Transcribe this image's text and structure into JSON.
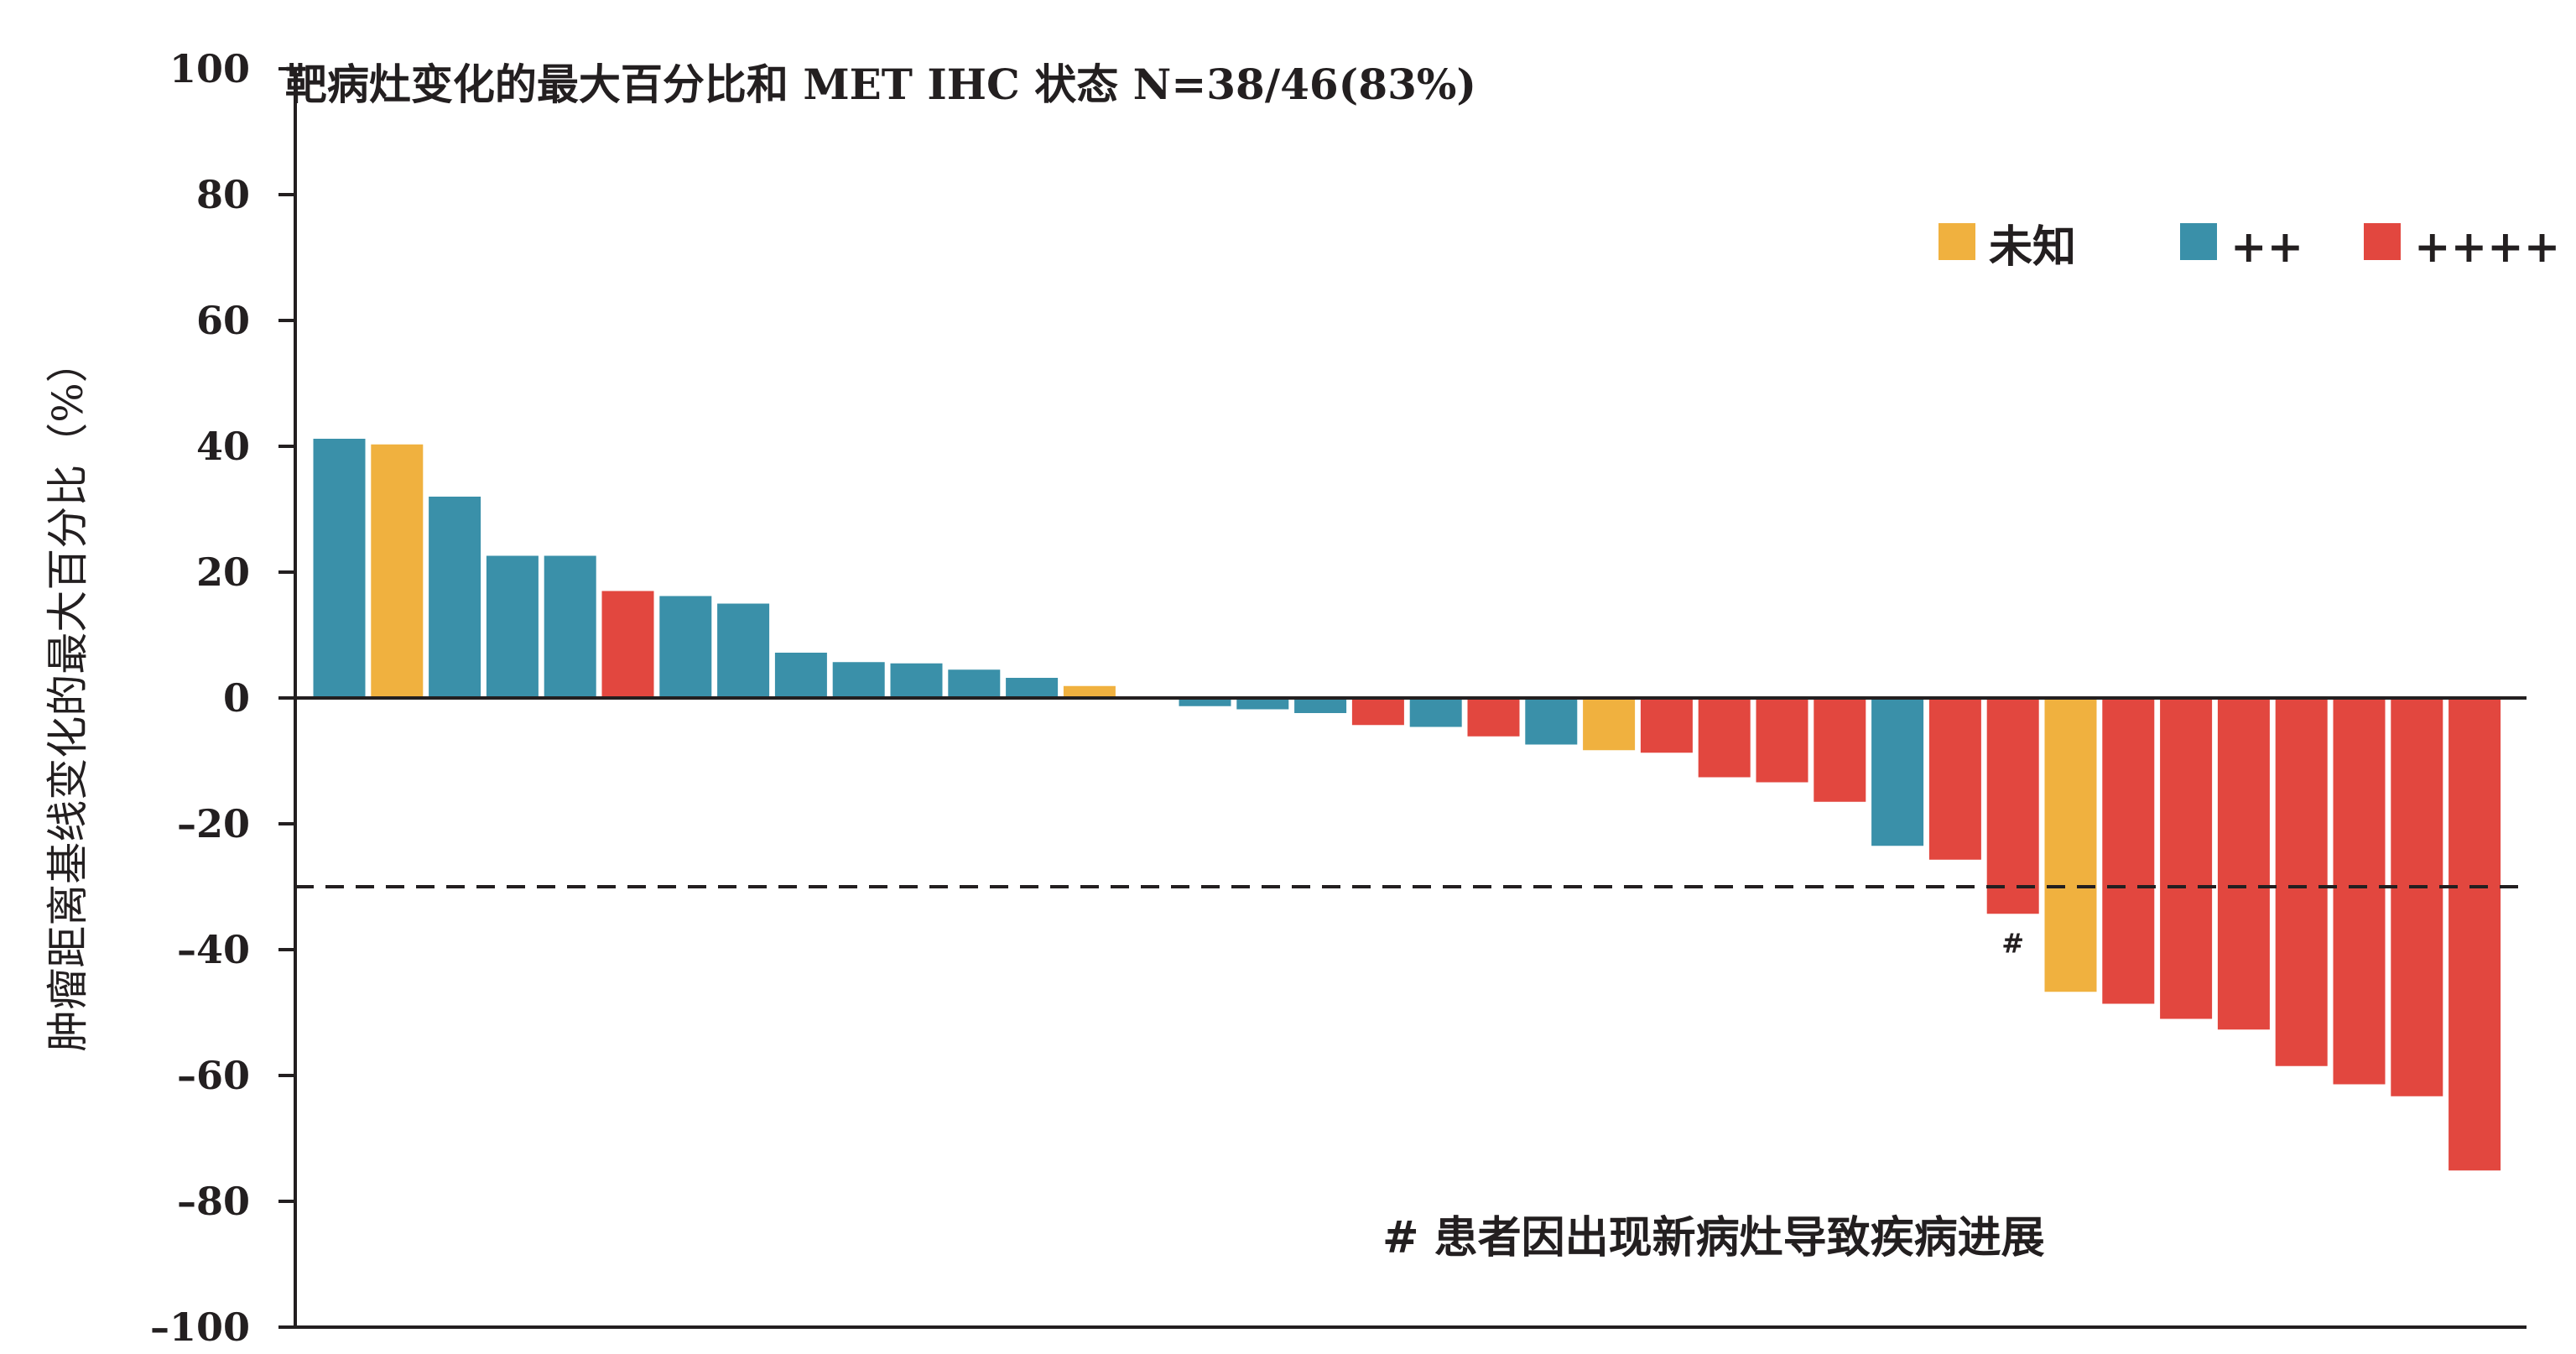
{
  "chart_data": {
    "type": "bar",
    "title": "靶病灶变化的最大百分比和 MET IHC 状态  N=38/46(83%)",
    "ylabel": "肿瘤距离基线变化的最大百分比（%）",
    "xlabel": "",
    "ylim": [
      -100,
      100
    ],
    "yticks": [
      "100",
      "80",
      "60",
      "40",
      "20",
      "0",
      "–20",
      "–40",
      "–60",
      "–80",
      "–100"
    ],
    "yticks_values": [
      100,
      80,
      60,
      40,
      20,
      0,
      -20,
      -40,
      -60,
      -80,
      -100
    ],
    "threshold": -30,
    "colors": {
      "unknown": "#f0b13f",
      "plus2": "#3a90a9",
      "plus4": "#e2473f"
    },
    "legend": [
      {
        "label": "未知",
        "key": "unknown"
      },
      {
        "label": "++",
        "key": "plus2"
      },
      {
        "label": "++++",
        "key": "plus4"
      }
    ],
    "values": [
      41.2,
      40.3,
      32.0,
      22.6,
      22.6,
      17.0,
      16.2,
      15.0,
      7.2,
      5.7,
      5.5,
      4.5,
      3.2,
      1.9,
      0,
      -1.3,
      -1.8,
      -2.4,
      -4.3,
      -4.6,
      -6.1,
      -7.4,
      -8.3,
      -8.7,
      -12.6,
      -13.4,
      -16.5,
      -23.5,
      -25.7,
      -34.3,
      -46.7,
      -48.6,
      -51.0,
      -52.7,
      -58.5,
      -61.4,
      -63.3,
      -75.1
    ],
    "groups": [
      "plus2",
      "unknown",
      "plus2",
      "plus2",
      "plus2",
      "plus4",
      "plus2",
      "plus2",
      "plus2",
      "plus2",
      "plus2",
      "plus2",
      "plus2",
      "unknown",
      "plus2",
      "plus2",
      "plus2",
      "plus2",
      "plus4",
      "plus2",
      "plus4",
      "plus2",
      "unknown",
      "plus4",
      "plus4",
      "plus4",
      "plus4",
      "plus2",
      "plus4",
      "plus4",
      "unknown",
      "plus4",
      "plus4",
      "plus4",
      "plus4",
      "plus4",
      "plus4",
      "plus4"
    ],
    "annotations": [
      {
        "bar_index": 29,
        "text": "#"
      }
    ],
    "note": "# 患者因出现新病灶导致疾病进展",
    "grid": false,
    "legend_position": "top-right"
  }
}
